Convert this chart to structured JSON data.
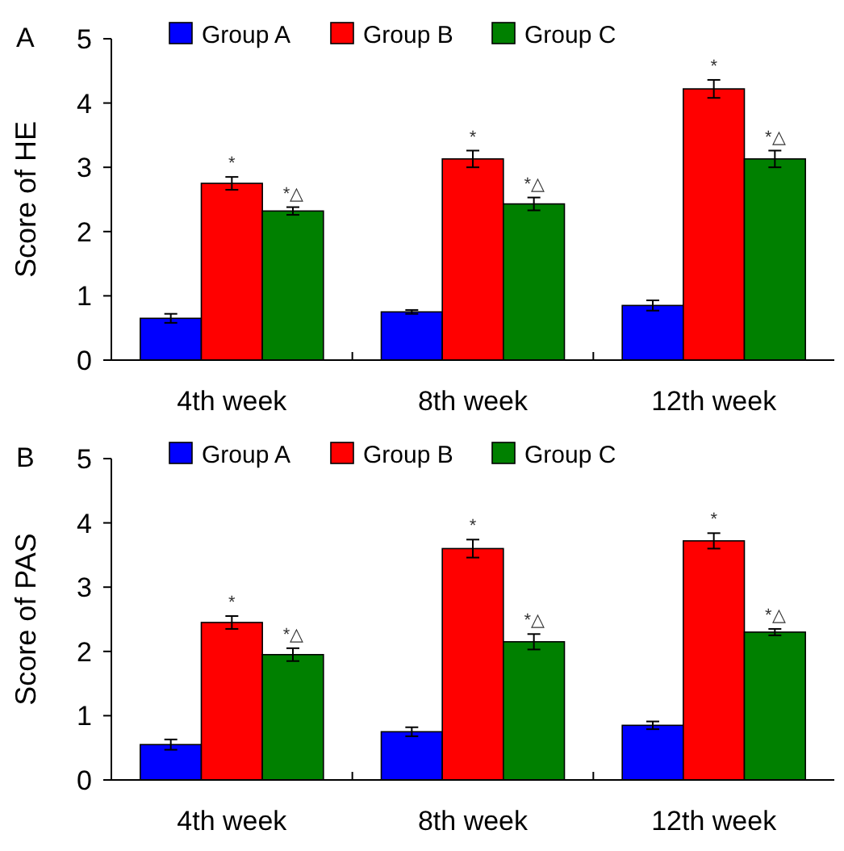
{
  "chart_data": [
    {
      "type": "bar",
      "title": "A",
      "ylabel": "Score of HE",
      "categories": [
        "4th week",
        "8th week",
        "12th week"
      ],
      "series": [
        {
          "name": "Group A",
          "color": "#0000ff",
          "values": [
            0.65,
            0.75,
            0.85
          ],
          "errors": [
            0.07,
            0.03,
            0.08
          ]
        },
        {
          "name": "Group B",
          "color": "#ff0000",
          "values": [
            2.75,
            3.13,
            4.22
          ],
          "errors": [
            0.1,
            0.13,
            0.14
          ],
          "value_labels": [
            "*",
            "*",
            "*"
          ]
        },
        {
          "name": "Group C",
          "color": "#008000",
          "values": [
            2.32,
            2.43,
            3.13
          ],
          "errors": [
            0.06,
            0.1,
            0.13
          ],
          "value_labels": [
            "*△",
            "*△",
            "*△"
          ]
        }
      ],
      "ylim": [
        0,
        5
      ],
      "yticks": [
        0,
        1,
        2,
        3,
        4,
        5
      ],
      "grid": false,
      "legend": "top"
    },
    {
      "type": "bar",
      "title": "B",
      "ylabel": "Score of PAS",
      "categories": [
        "4th week",
        "8th week",
        "12th week"
      ],
      "series": [
        {
          "name": "Group A",
          "color": "#0000ff",
          "values": [
            0.55,
            0.75,
            0.85
          ],
          "errors": [
            0.08,
            0.07,
            0.06
          ]
        },
        {
          "name": "Group B",
          "color": "#ff0000",
          "values": [
            2.45,
            3.6,
            3.72
          ],
          "errors": [
            0.1,
            0.14,
            0.12
          ],
          "value_labels": [
            "*",
            "*",
            "*"
          ]
        },
        {
          "name": "Group C",
          "color": "#008000",
          "values": [
            1.95,
            2.15,
            2.3
          ],
          "errors": [
            0.1,
            0.12,
            0.05
          ],
          "value_labels": [
            "*△",
            "*△",
            "*△"
          ]
        }
      ],
      "ylim": [
        0,
        5
      ],
      "yticks": [
        0,
        1,
        2,
        3,
        4,
        5
      ],
      "grid": false,
      "legend": "top"
    }
  ]
}
